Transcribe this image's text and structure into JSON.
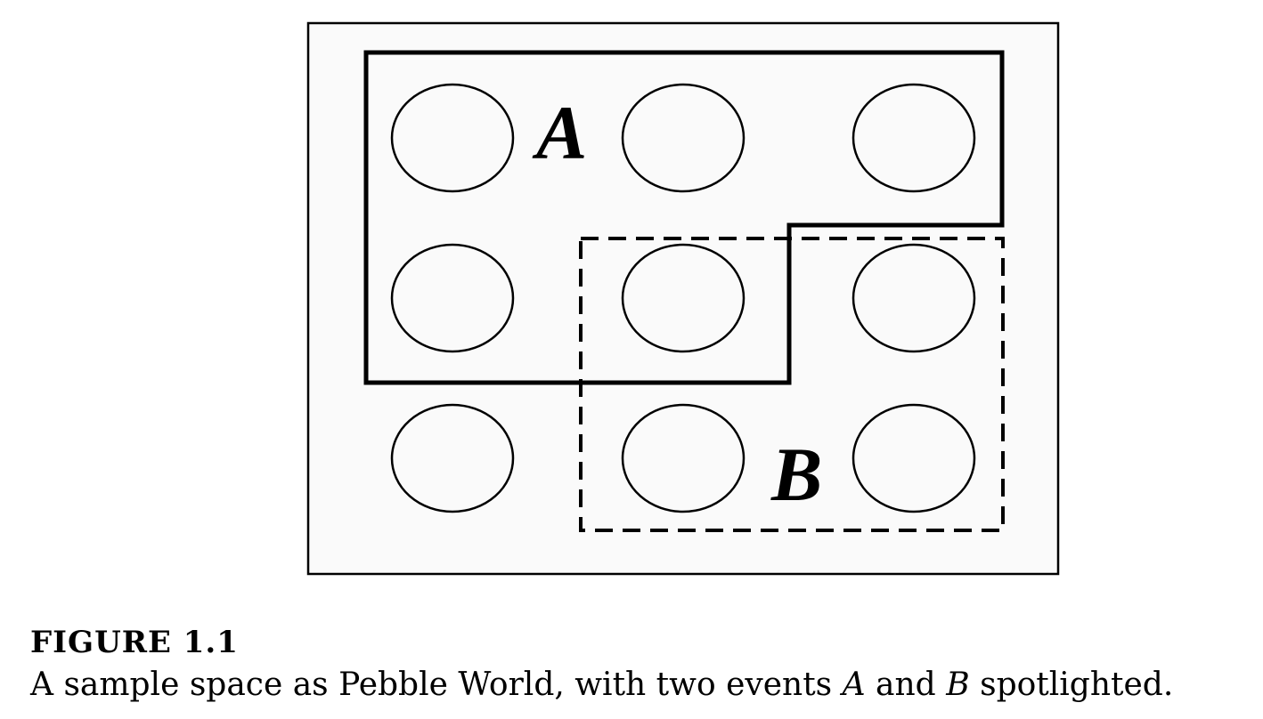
{
  "diagram": {
    "description_role": "sample-space",
    "pebble_rows": 3,
    "pebble_cols": 3,
    "events": [
      {
        "id": "A",
        "label": "A",
        "line_style": "solid"
      },
      {
        "id": "B",
        "label": "B",
        "line_style": "dashed"
      }
    ]
  },
  "caption": {
    "title": "FIGURE 1.1",
    "text_before": "A sample space as Pebble World, with two events ",
    "var_a": "A",
    "text_middle": " and ",
    "var_b": "B",
    "text_after": " spotlighted."
  }
}
